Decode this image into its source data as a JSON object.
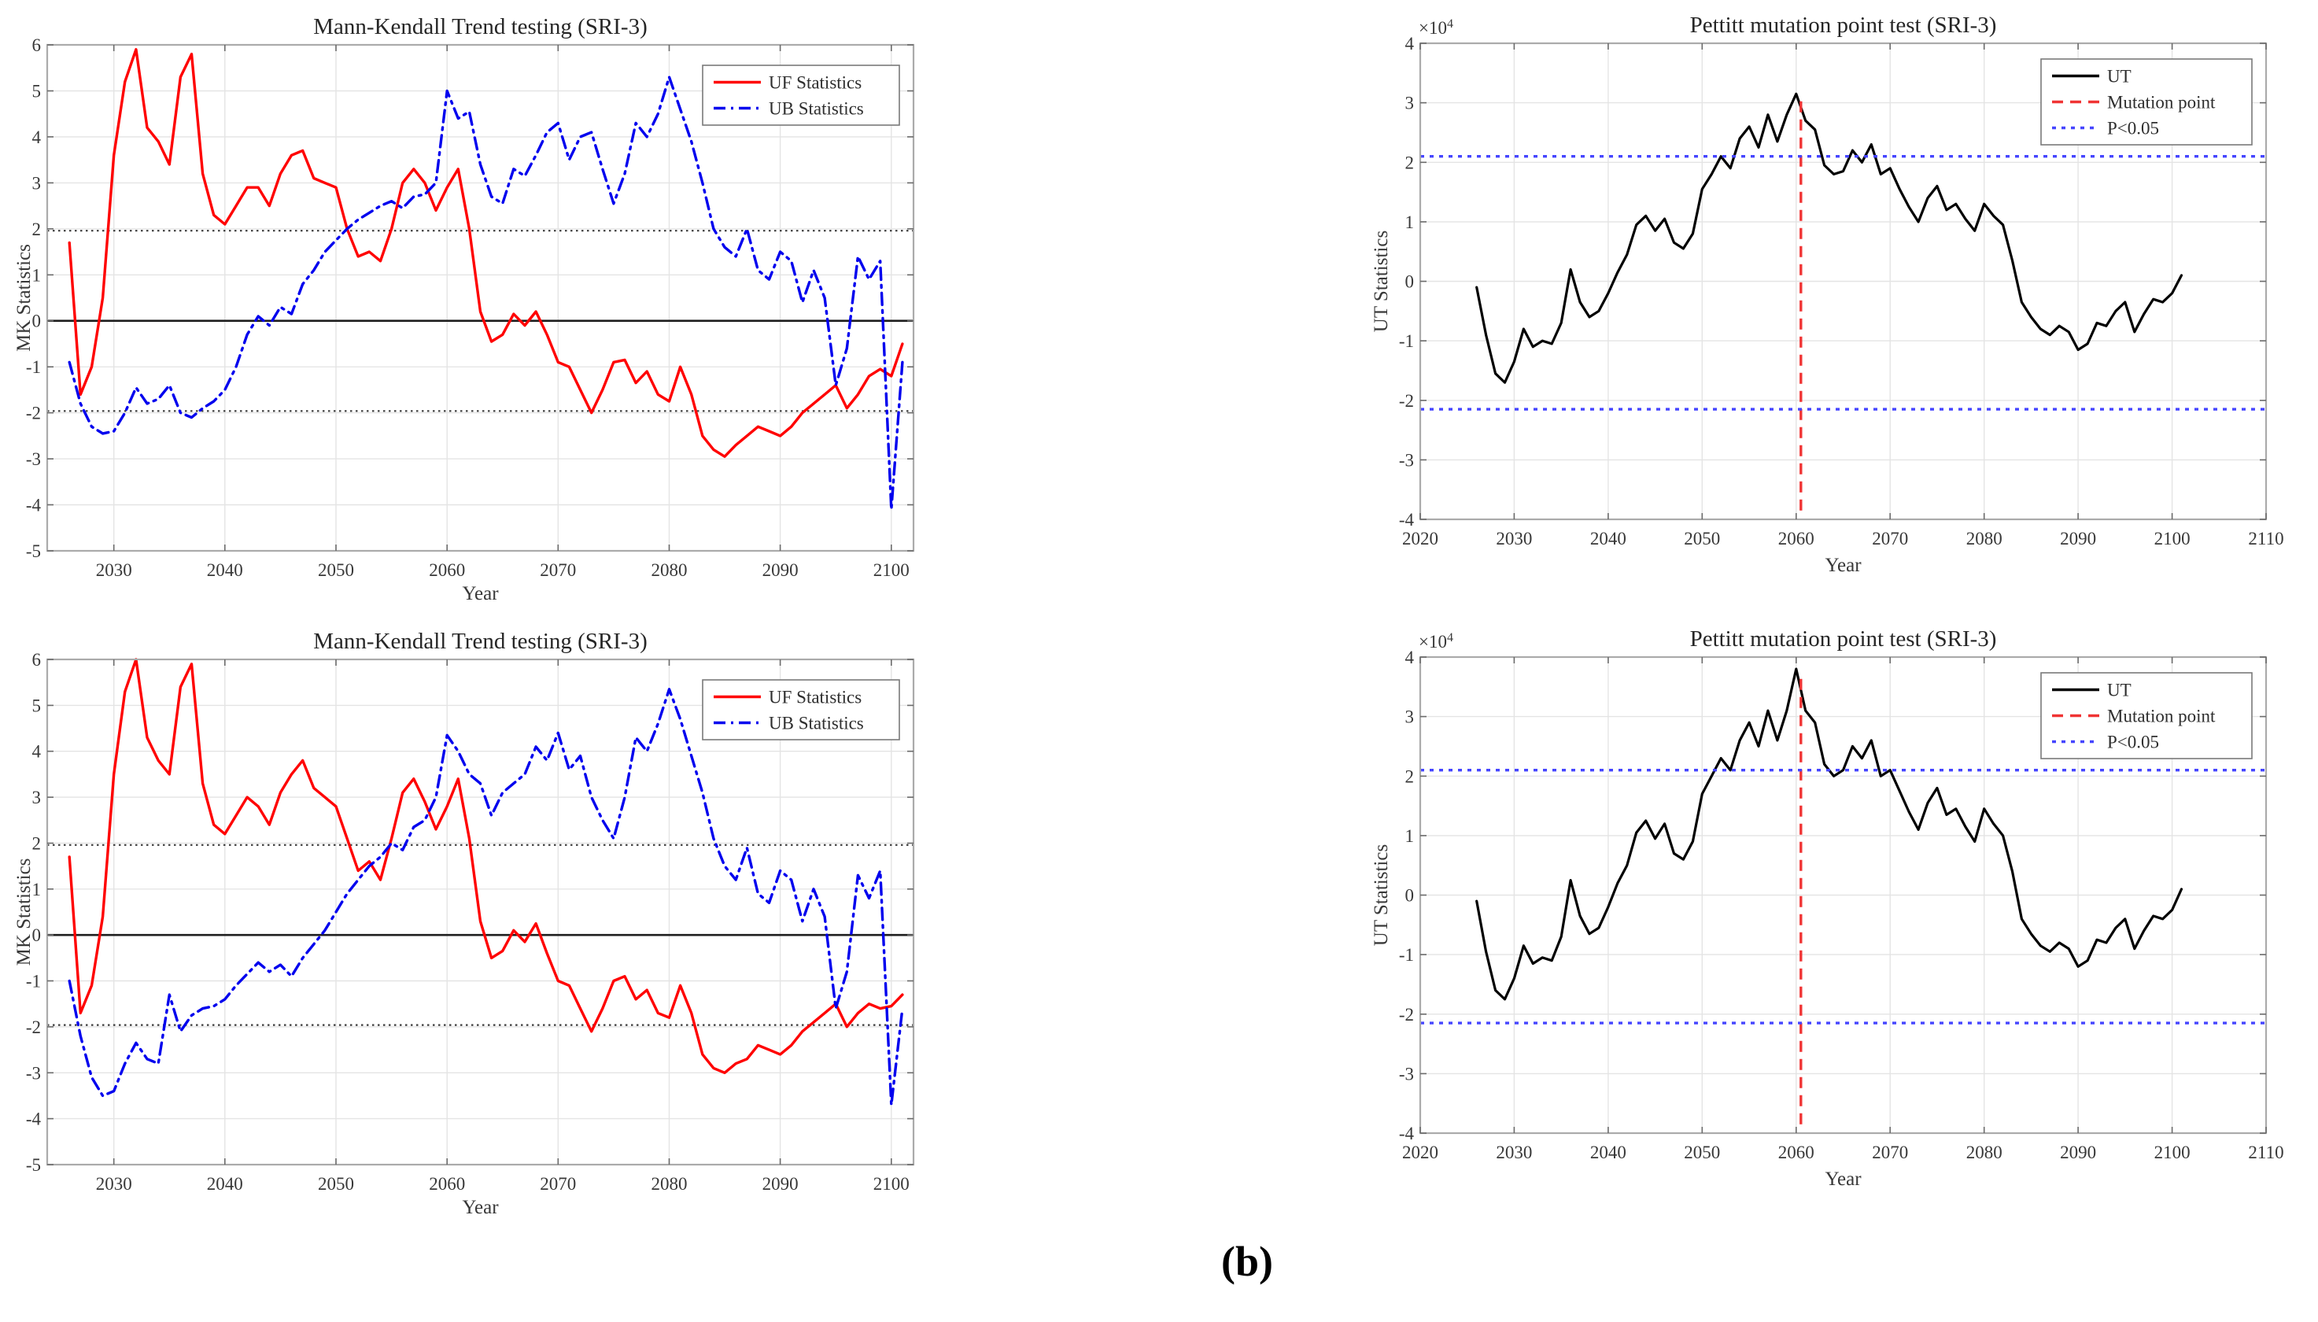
{
  "figure": {
    "caption": "(b)"
  },
  "chart_data": [
    {
      "id": "mk-top",
      "type": "line",
      "title": "Mann-Kendall Trend testing (SRI-3)",
      "xlabel": "Year",
      "ylabel": "MK Statistics",
      "xlim": [
        2024,
        2102
      ],
      "ylim": [
        -5,
        6
      ],
      "xticks": [
        2030,
        2040,
        2050,
        2060,
        2070,
        2080,
        2090,
        2100
      ],
      "yticks": [
        -5,
        -4,
        -3,
        -2,
        -1,
        0,
        1,
        2,
        3,
        4,
        5,
        6
      ],
      "grid": true,
      "x": {
        "start": 2026,
        "end": 2101,
        "step": 1
      },
      "ref_lines": [
        {
          "axis": "y",
          "value": 0,
          "style": "solid",
          "color": "#1f1f1f",
          "width": 2.6,
          "layer": "below"
        },
        {
          "axis": "y",
          "value": 1.96,
          "style": "dotted",
          "color": "#3c3c3c",
          "width": 2.2,
          "layer": "below"
        },
        {
          "axis": "y",
          "value": -1.96,
          "style": "dotted",
          "color": "#3c3c3c",
          "width": 2.2,
          "layer": "below"
        }
      ],
      "series": [
        {
          "name": "UF Statistics",
          "color": "#ff0000",
          "style": "solid",
          "width": 3.4,
          "values": [
            1.7,
            -1.6,
            -1.0,
            0.5,
            3.6,
            5.2,
            5.9,
            4.2,
            3.9,
            3.4,
            5.3,
            5.8,
            3.2,
            2.3,
            2.1,
            2.5,
            2.9,
            2.9,
            2.5,
            3.2,
            3.6,
            3.7,
            3.1,
            3.0,
            2.9,
            2.0,
            1.4,
            1.5,
            1.3,
            2.0,
            3.0,
            3.3,
            3.0,
            2.4,
            2.9,
            3.3,
            2.0,
            0.2,
            -0.45,
            -0.3,
            0.15,
            -0.1,
            0.2,
            -0.3,
            -0.9,
            -1.0,
            -1.5,
            -2.0,
            -1.5,
            -0.9,
            -0.85,
            -1.35,
            -1.1,
            -1.6,
            -1.75,
            -1.0,
            -1.6,
            -2.5,
            -2.8,
            -2.95,
            -2.7,
            -2.5,
            -2.3,
            -2.4,
            -2.5,
            -2.3,
            -2.0,
            -1.8,
            -1.6,
            -1.4,
            -1.9,
            -1.6,
            -1.2,
            -1.05,
            -1.2,
            -0.5
          ]
        },
        {
          "name": "UB Statistics",
          "color": "#0000ee",
          "style": "dashdot",
          "width": 3.4,
          "values": [
            -0.9,
            -1.8,
            -2.3,
            -2.45,
            -2.4,
            -2.0,
            -1.45,
            -1.8,
            -1.7,
            -1.4,
            -2.0,
            -2.1,
            -1.9,
            -1.75,
            -1.5,
            -1.0,
            -0.3,
            0.1,
            -0.1,
            0.3,
            0.15,
            0.8,
            1.1,
            1.5,
            1.75,
            2.0,
            2.2,
            2.35,
            2.5,
            2.6,
            2.45,
            2.7,
            2.75,
            3.0,
            5.0,
            4.4,
            4.55,
            3.4,
            2.7,
            2.55,
            3.3,
            3.15,
            3.6,
            4.1,
            4.3,
            3.5,
            4.0,
            4.1,
            3.3,
            2.55,
            3.2,
            4.3,
            4.0,
            4.5,
            5.3,
            4.6,
            3.9,
            3.0,
            2.0,
            1.6,
            1.4,
            2.0,
            1.1,
            0.9,
            1.5,
            1.3,
            0.4,
            1.1,
            0.5,
            -1.4,
            -0.6,
            1.4,
            0.9,
            1.3,
            -4.1,
            -0.9
          ]
        }
      ],
      "legend": {
        "entries": [
          {
            "label": "UF Statistics",
            "color": "#ff0000",
            "style": "solid"
          },
          {
            "label": "UB Statistics",
            "color": "#0000ee",
            "style": "dashdot"
          }
        ]
      }
    },
    {
      "id": "pettitt-top",
      "type": "line",
      "title": "Pettitt mutation point test (SRI-3)",
      "xlabel": "Year",
      "ylabel": "UT Statistics",
      "y_exponent": {
        "base": "×10",
        "exp": "4"
      },
      "xlim": [
        2020,
        2110
      ],
      "ylim": [
        -4,
        4
      ],
      "xticks": [
        2020,
        2030,
        2040,
        2050,
        2060,
        2070,
        2080,
        2090,
        2100,
        2110
      ],
      "yticks": [
        -4,
        -3,
        -2,
        -1,
        0,
        1,
        2,
        3,
        4
      ],
      "grid": true,
      "x": {
        "start": 2026,
        "end": 2101,
        "step": 1
      },
      "mutation_year": 2060.5,
      "ref_lines": [
        {
          "axis": "x",
          "value": 2060.5,
          "y_from": -3.85,
          "y_to": 3.1,
          "style": "dashed",
          "color": "#f03434",
          "width": 3.4,
          "layer": "above",
          "label": "Mutation point"
        },
        {
          "axis": "y",
          "value": 2.1,
          "style": "densedash",
          "color": "#4545ff",
          "width": 3.4,
          "layer": "above",
          "label": "P<0.05"
        },
        {
          "axis": "y",
          "value": -2.15,
          "style": "densedash",
          "color": "#4545ff",
          "width": 3.4,
          "layer": "above",
          "label": "P<0.05"
        }
      ],
      "series": [
        {
          "name": "UT",
          "color": "#000000",
          "style": "solid",
          "width": 3.2,
          "values": [
            -0.1,
            -0.9,
            -1.55,
            -1.7,
            -1.35,
            -0.8,
            -1.1,
            -1.0,
            -1.05,
            -0.7,
            0.2,
            -0.35,
            -0.6,
            -0.5,
            -0.2,
            0.15,
            0.45,
            0.95,
            1.1,
            0.85,
            1.05,
            0.65,
            0.55,
            0.8,
            1.55,
            1.8,
            2.1,
            1.9,
            2.4,
            2.6,
            2.25,
            2.8,
            2.35,
            2.8,
            3.15,
            2.7,
            2.55,
            1.95,
            1.8,
            1.85,
            2.2,
            2.0,
            2.3,
            1.8,
            1.9,
            1.55,
            1.25,
            1.0,
            1.4,
            1.6,
            1.2,
            1.3,
            1.05,
            0.85,
            1.3,
            1.1,
            0.95,
            0.35,
            -0.35,
            -0.6,
            -0.8,
            -0.9,
            -0.75,
            -0.85,
            -1.15,
            -1.05,
            -0.7,
            -0.75,
            -0.5,
            -0.35,
            -0.85,
            -0.55,
            -0.3,
            -0.35,
            -0.2,
            0.1
          ]
        }
      ],
      "legend": {
        "entries": [
          {
            "label": "UT",
            "color": "#000000",
            "style": "solid"
          },
          {
            "label": "Mutation point",
            "color": "#f03434",
            "style": "dashed"
          },
          {
            "label": "P<0.05",
            "color": "#4545ff",
            "style": "densedash"
          }
        ]
      }
    },
    {
      "id": "mk-bottom",
      "type": "line",
      "title": "Mann-Kendall Trend testing (SRI-3)",
      "xlabel": "Year",
      "ylabel": "MK Statistics",
      "xlim": [
        2024,
        2102
      ],
      "ylim": [
        -5,
        6
      ],
      "xticks": [
        2030,
        2040,
        2050,
        2060,
        2070,
        2080,
        2090,
        2100
      ],
      "yticks": [
        -5,
        -4,
        -3,
        -2,
        -1,
        0,
        1,
        2,
        3,
        4,
        5,
        6
      ],
      "grid": true,
      "x": {
        "start": 2026,
        "end": 2101,
        "step": 1
      },
      "ref_lines": [
        {
          "axis": "y",
          "value": 0,
          "style": "solid",
          "color": "#1f1f1f",
          "width": 2.6,
          "layer": "below"
        },
        {
          "axis": "y",
          "value": 1.96,
          "style": "dotted",
          "color": "#3c3c3c",
          "width": 2.2,
          "layer": "below"
        },
        {
          "axis": "y",
          "value": -1.96,
          "style": "dotted",
          "color": "#3c3c3c",
          "width": 2.2,
          "layer": "below"
        }
      ],
      "series": [
        {
          "name": "UF Statistics",
          "color": "#ff0000",
          "style": "solid",
          "width": 3.4,
          "values": [
            1.7,
            -1.7,
            -1.1,
            0.4,
            3.5,
            5.3,
            6.0,
            4.3,
            3.8,
            3.5,
            5.4,
            5.9,
            3.3,
            2.4,
            2.2,
            2.6,
            3.0,
            2.8,
            2.4,
            3.1,
            3.5,
            3.8,
            3.2,
            3.0,
            2.8,
            2.1,
            1.4,
            1.6,
            1.2,
            2.1,
            3.1,
            3.4,
            2.9,
            2.3,
            2.8,
            3.4,
            2.1,
            0.3,
            -0.5,
            -0.35,
            0.1,
            -0.15,
            0.25,
            -0.4,
            -1.0,
            -1.1,
            -1.6,
            -2.1,
            -1.6,
            -1.0,
            -0.9,
            -1.4,
            -1.2,
            -1.7,
            -1.8,
            -1.1,
            -1.7,
            -2.6,
            -2.9,
            -3.0,
            -2.8,
            -2.7,
            -2.4,
            -2.5,
            -2.6,
            -2.4,
            -2.1,
            -1.9,
            -1.7,
            -1.5,
            -2.0,
            -1.7,
            -1.5,
            -1.6,
            -1.55,
            -1.3
          ]
        },
        {
          "name": "UB Statistics",
          "color": "#0000ee",
          "style": "dashdot",
          "width": 3.4,
          "values": [
            -1.0,
            -2.2,
            -3.1,
            -3.5,
            -3.4,
            -2.8,
            -2.35,
            -2.7,
            -2.8,
            -1.3,
            -2.1,
            -1.75,
            -1.6,
            -1.55,
            -1.4,
            -1.1,
            -0.85,
            -0.6,
            -0.8,
            -0.65,
            -0.9,
            -0.5,
            -0.2,
            0.1,
            0.5,
            0.9,
            1.2,
            1.5,
            1.7,
            2.0,
            1.85,
            2.35,
            2.5,
            3.0,
            4.35,
            4.0,
            3.5,
            3.3,
            2.6,
            3.1,
            3.3,
            3.5,
            4.1,
            3.8,
            4.4,
            3.6,
            3.9,
            3.0,
            2.5,
            2.1,
            3.0,
            4.3,
            4.0,
            4.6,
            5.35,
            4.7,
            3.9,
            3.1,
            2.1,
            1.5,
            1.2,
            1.9,
            0.9,
            0.7,
            1.4,
            1.2,
            0.3,
            1.0,
            0.4,
            -1.6,
            -0.8,
            1.3,
            0.8,
            1.4,
            -3.7,
            -1.6
          ]
        }
      ],
      "legend": {
        "entries": [
          {
            "label": "UF Statistics",
            "color": "#ff0000",
            "style": "solid"
          },
          {
            "label": "UB Statistics",
            "color": "#0000ee",
            "style": "dashdot"
          }
        ]
      }
    },
    {
      "id": "pettitt-bottom",
      "type": "line",
      "title": "Pettitt mutation point test (SRI-3)",
      "xlabel": "Year",
      "ylabel": "UT Statistics",
      "y_exponent": {
        "base": "×10",
        "exp": "4"
      },
      "xlim": [
        2020,
        2110
      ],
      "ylim": [
        -4,
        4
      ],
      "xticks": [
        2020,
        2030,
        2040,
        2050,
        2060,
        2070,
        2080,
        2090,
        2100,
        2110
      ],
      "yticks": [
        -4,
        -3,
        -2,
        -1,
        0,
        1,
        2,
        3,
        4
      ],
      "grid": true,
      "x": {
        "start": 2026,
        "end": 2101,
        "step": 1
      },
      "mutation_year": 2060.5,
      "ref_lines": [
        {
          "axis": "x",
          "value": 2060.5,
          "y_from": -3.85,
          "y_to": 3.75,
          "style": "dashed",
          "color": "#f03434",
          "width": 3.4,
          "layer": "above",
          "label": "Mutation point"
        },
        {
          "axis": "y",
          "value": 2.1,
          "style": "densedash",
          "color": "#4545ff",
          "width": 3.4,
          "layer": "above",
          "label": "P<0.05"
        },
        {
          "axis": "y",
          "value": -2.15,
          "style": "densedash",
          "color": "#4545ff",
          "width": 3.4,
          "layer": "above",
          "label": "P<0.05"
        }
      ],
      "series": [
        {
          "name": "UT",
          "color": "#000000",
          "style": "solid",
          "width": 3.2,
          "values": [
            -0.1,
            -0.95,
            -1.6,
            -1.75,
            -1.4,
            -0.85,
            -1.15,
            -1.05,
            -1.1,
            -0.7,
            0.25,
            -0.35,
            -0.65,
            -0.55,
            -0.2,
            0.2,
            0.5,
            1.05,
            1.25,
            0.95,
            1.2,
            0.7,
            0.6,
            0.9,
            1.7,
            2.0,
            2.3,
            2.1,
            2.6,
            2.9,
            2.5,
            3.1,
            2.6,
            3.1,
            3.8,
            3.1,
            2.9,
            2.2,
            2.0,
            2.1,
            2.5,
            2.3,
            2.6,
            2.0,
            2.1,
            1.75,
            1.4,
            1.1,
            1.55,
            1.8,
            1.35,
            1.45,
            1.15,
            0.9,
            1.45,
            1.2,
            1.0,
            0.4,
            -0.4,
            -0.65,
            -0.85,
            -0.95,
            -0.8,
            -0.9,
            -1.2,
            -1.1,
            -0.75,
            -0.8,
            -0.55,
            -0.4,
            -0.9,
            -0.6,
            -0.35,
            -0.4,
            -0.25,
            0.1
          ]
        }
      ],
      "legend": {
        "entries": [
          {
            "label": "UT",
            "color": "#000000",
            "style": "solid"
          },
          {
            "label": "Mutation point",
            "color": "#f03434",
            "style": "dashed"
          },
          {
            "label": "P<0.05",
            "color": "#4545ff",
            "style": "densedash"
          }
        ]
      }
    }
  ]
}
